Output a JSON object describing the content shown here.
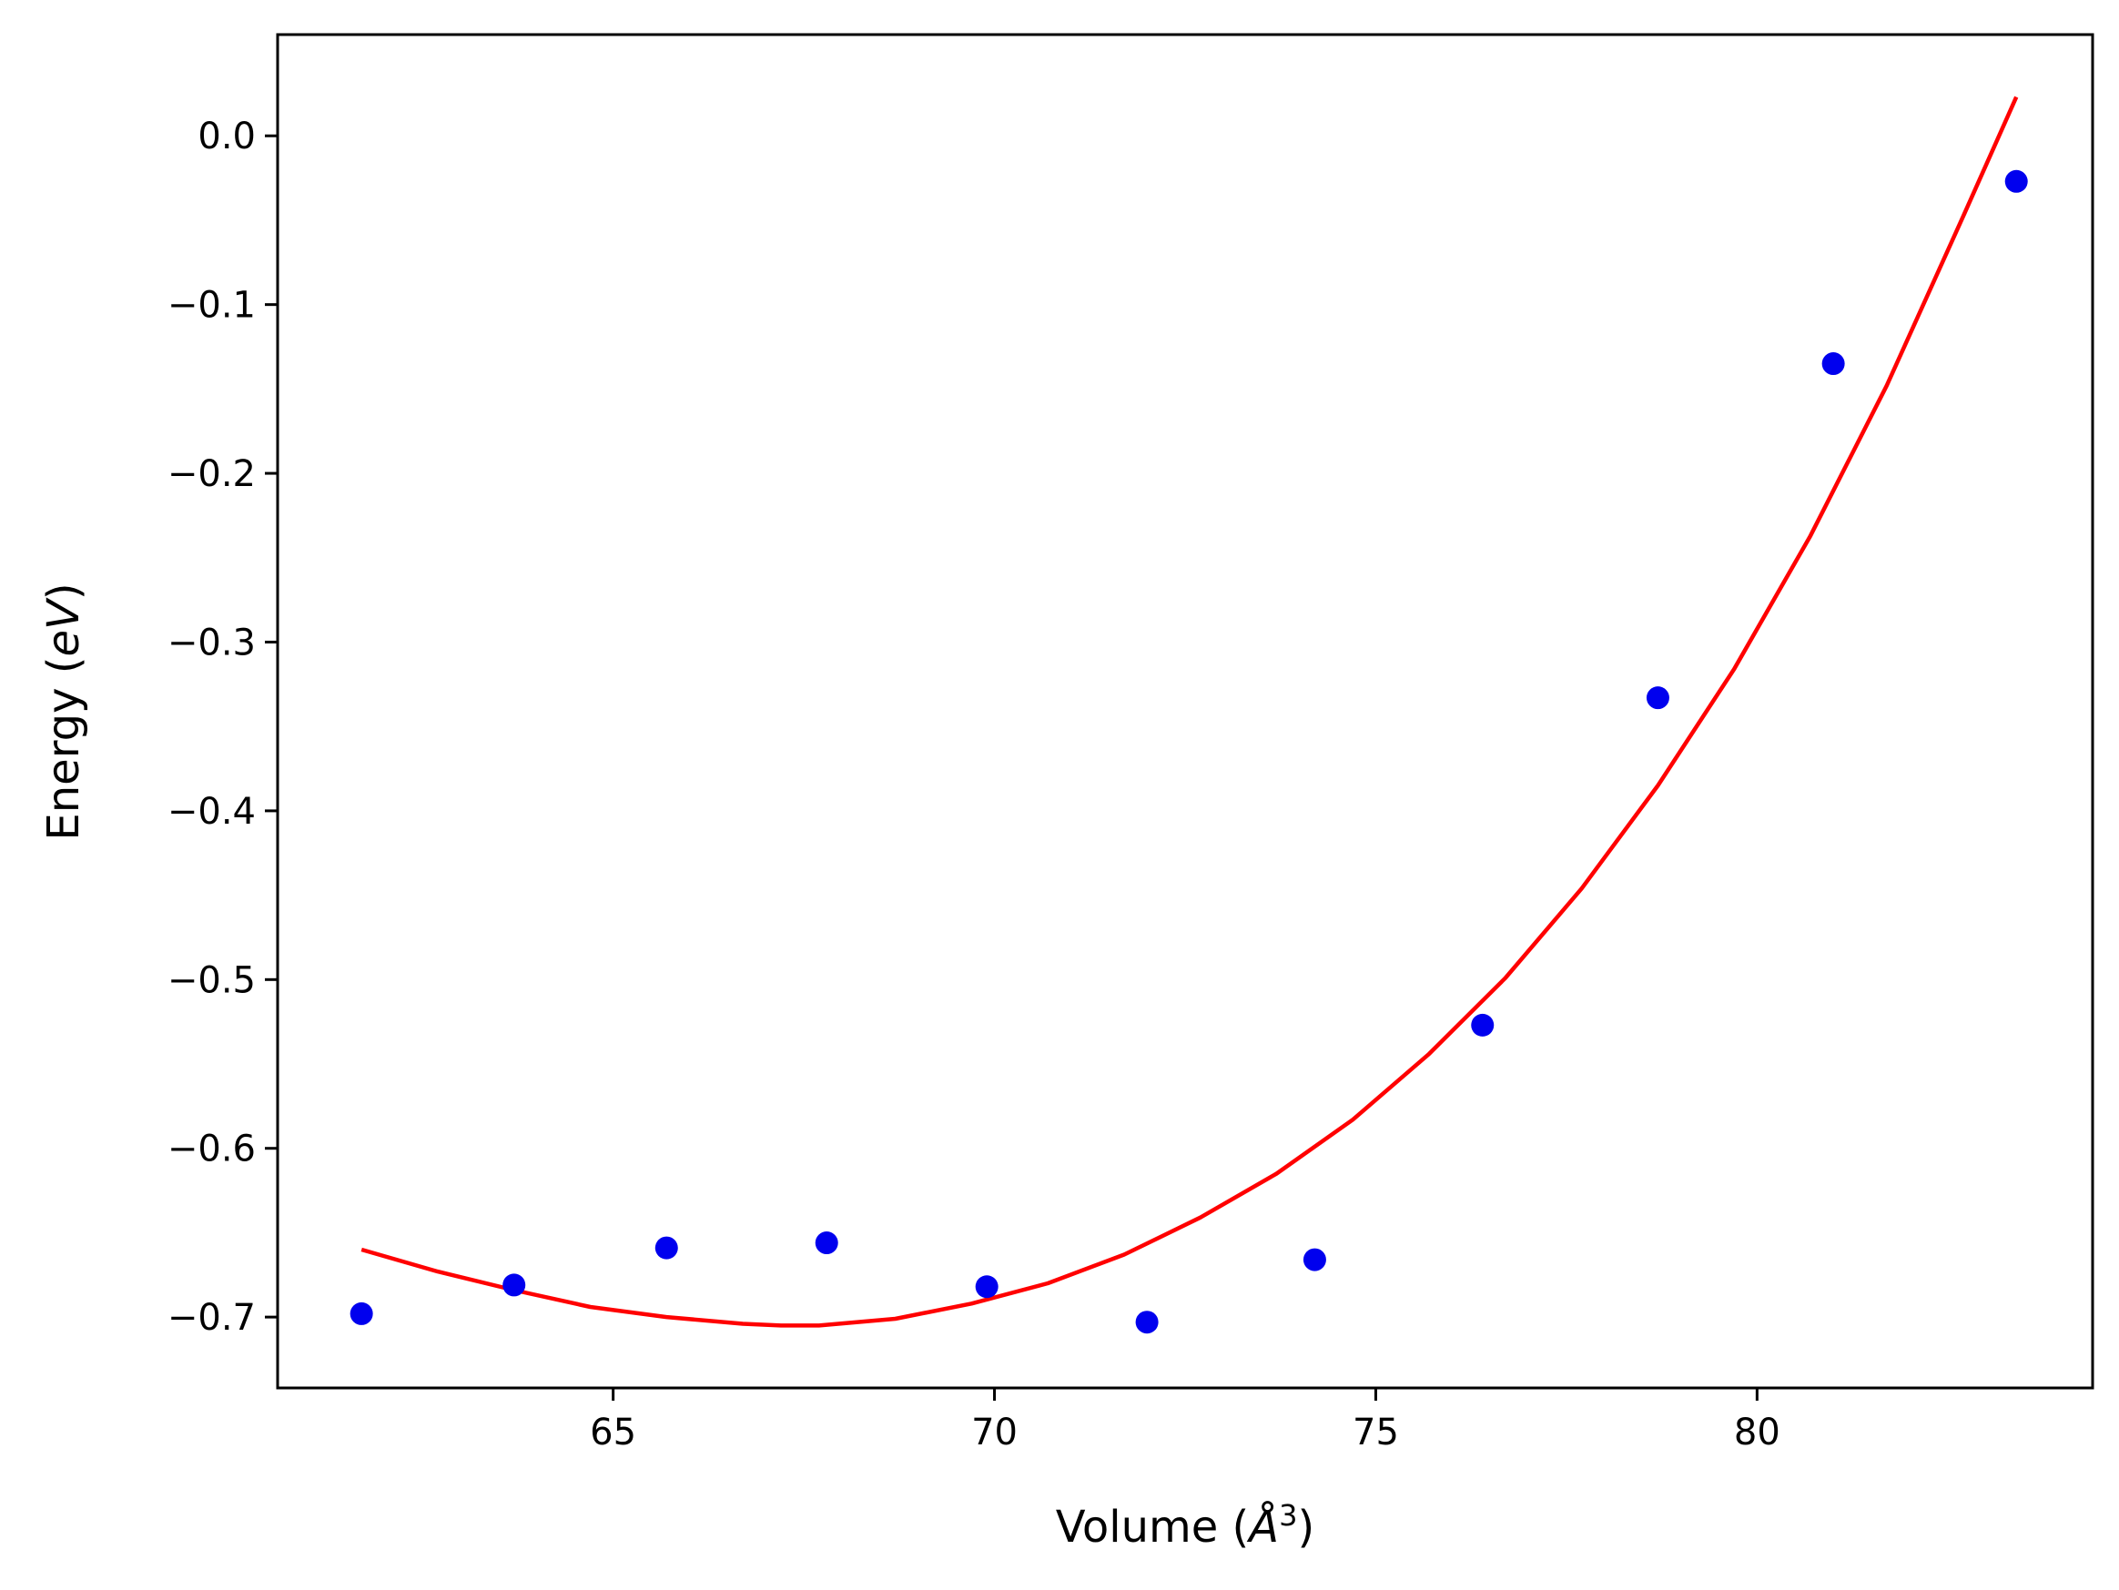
{
  "chart_data": {
    "type": "scatter",
    "title": "",
    "xlabel": "Volume",
    "xlabel_unit_symbol": "Å",
    "xlabel_unit_exponent": "3",
    "ylabel": "Energy",
    "ylabel_unit": "eV",
    "xlim": [
      60.6,
      84.4
    ],
    "ylim": [
      -0.742,
      0.06
    ],
    "grid": false,
    "legend": "none",
    "x_ticks": [
      {
        "value": 65,
        "label": "65"
      },
      {
        "value": 70,
        "label": "70"
      },
      {
        "value": 75,
        "label": "75"
      },
      {
        "value": 80,
        "label": "80"
      }
    ],
    "y_ticks": [
      {
        "value": 0.0,
        "label": "0.0"
      },
      {
        "value": -0.1,
        "label": "−0.1"
      },
      {
        "value": -0.2,
        "label": "−0.2"
      },
      {
        "value": -0.3,
        "label": "−0.3"
      },
      {
        "value": -0.4,
        "label": "−0.4"
      },
      {
        "value": -0.5,
        "label": "−0.5"
      },
      {
        "value": -0.6,
        "label": "−0.6"
      },
      {
        "value": -0.7,
        "label": "−0.7"
      }
    ],
    "series": [
      {
        "kind": "scatter",
        "color": "#0000ee",
        "x": [
          61.7,
          63.7,
          65.7,
          67.8,
          69.9,
          72.0,
          74.2,
          76.4,
          78.7,
          81.0,
          83.4
        ],
        "y": [
          -0.698,
          -0.681,
          -0.659,
          -0.656,
          -0.682,
          -0.703,
          -0.666,
          -0.527,
          -0.333,
          -0.135,
          -0.027
        ]
      },
      {
        "kind": "line",
        "color": "#ff0000",
        "x": [
          61.7,
          62.7,
          63.7,
          64.7,
          65.7,
          66.7,
          67.2,
          67.7,
          68.7,
          69.7,
          70.7,
          71.7,
          72.7,
          73.7,
          74.7,
          75.7,
          76.7,
          77.7,
          78.7,
          79.7,
          80.7,
          81.7,
          82.7,
          83.4
        ],
        "y": [
          -0.66,
          -0.673,
          -0.684,
          -0.694,
          -0.7,
          -0.704,
          -0.705,
          -0.705,
          -0.701,
          -0.692,
          -0.68,
          -0.663,
          -0.641,
          -0.615,
          -0.583,
          -0.544,
          -0.499,
          -0.446,
          -0.385,
          -0.316,
          -0.237,
          -0.148,
          -0.048,
          0.023
        ]
      }
    ]
  }
}
